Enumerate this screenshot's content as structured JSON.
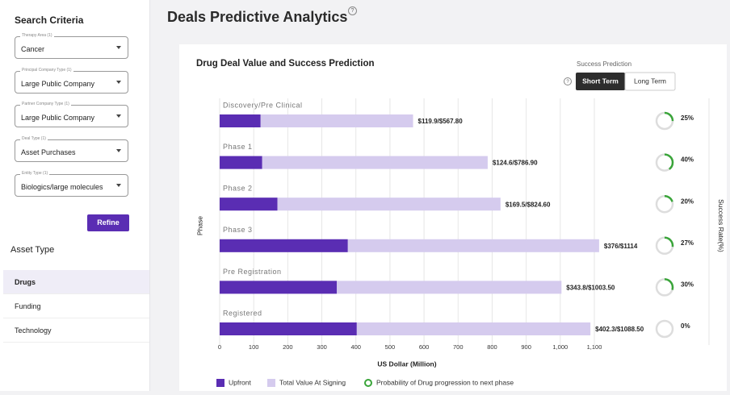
{
  "sidebar": {
    "title": "Search Criteria",
    "filters": [
      {
        "label": "Therapy Area (1)",
        "value": "Cancer"
      },
      {
        "label": "Principal Company Type (1)",
        "value": "Large Public Company"
      },
      {
        "label": "Partner Company Type (1)",
        "value": "Large Public Company"
      },
      {
        "label": "Deal Type (1)",
        "value": "Asset Purchases"
      },
      {
        "label": "Entity Type (1)",
        "value": "Biologics/large molecules"
      }
    ],
    "button": "Refine",
    "asset_type_title": "Asset Type",
    "asset_types": [
      "Drugs",
      "Funding",
      "Technology"
    ]
  },
  "header": {
    "title": "Deals Predictive Analytics",
    "help_icon": "?"
  },
  "chart_data": {
    "type": "bar",
    "title": "Drug Deal Value and Success Prediction",
    "toggle": {
      "label": "Success Prediction",
      "options": [
        "Short Term",
        "Long Term"
      ]
    },
    "categories": [
      "Discovery/Pre Clinical",
      "Phase 1",
      "Phase 2",
      "Phase 3",
      "Pre Registration",
      "Registered"
    ],
    "series": [
      {
        "name": "Upfront",
        "color": "#5a2db3",
        "values": [
          119.9,
          124.6,
          169.5,
          376,
          343.8,
          402.3
        ]
      },
      {
        "name": "Total Value At Signing",
        "color": "#d5cbee",
        "values": [
          567.8,
          786.9,
          824.6,
          1114,
          1003.5,
          1088.5
        ]
      }
    ],
    "value_labels": [
      "$119.9/$567.80",
      "$124.6/$786.90",
      "$169.5/$824.60",
      "$376/$1114",
      "$343.8/$1003.50",
      "$402.3/$1088.50"
    ],
    "success": {
      "name": "Probability of Drug progression to next phase",
      "color": "#3aa53a",
      "values": [
        25,
        40,
        20,
        27,
        30,
        0
      ],
      "value_labels": [
        "25%",
        "40%",
        "20%",
        "27%",
        "30%",
        "0%"
      ]
    },
    "xlabel": "US Dollar (Million)",
    "ylabel": "Phase",
    "y2label": "Success Rate(%)",
    "xlim": [
      0,
      1100
    ],
    "xticks": [
      0,
      100,
      200,
      300,
      400,
      500,
      600,
      700,
      800,
      900,
      {
        "value": 1000,
        "label": "1,000"
      },
      {
        "value": 1100,
        "label": "1,100"
      }
    ],
    "grid": true
  }
}
